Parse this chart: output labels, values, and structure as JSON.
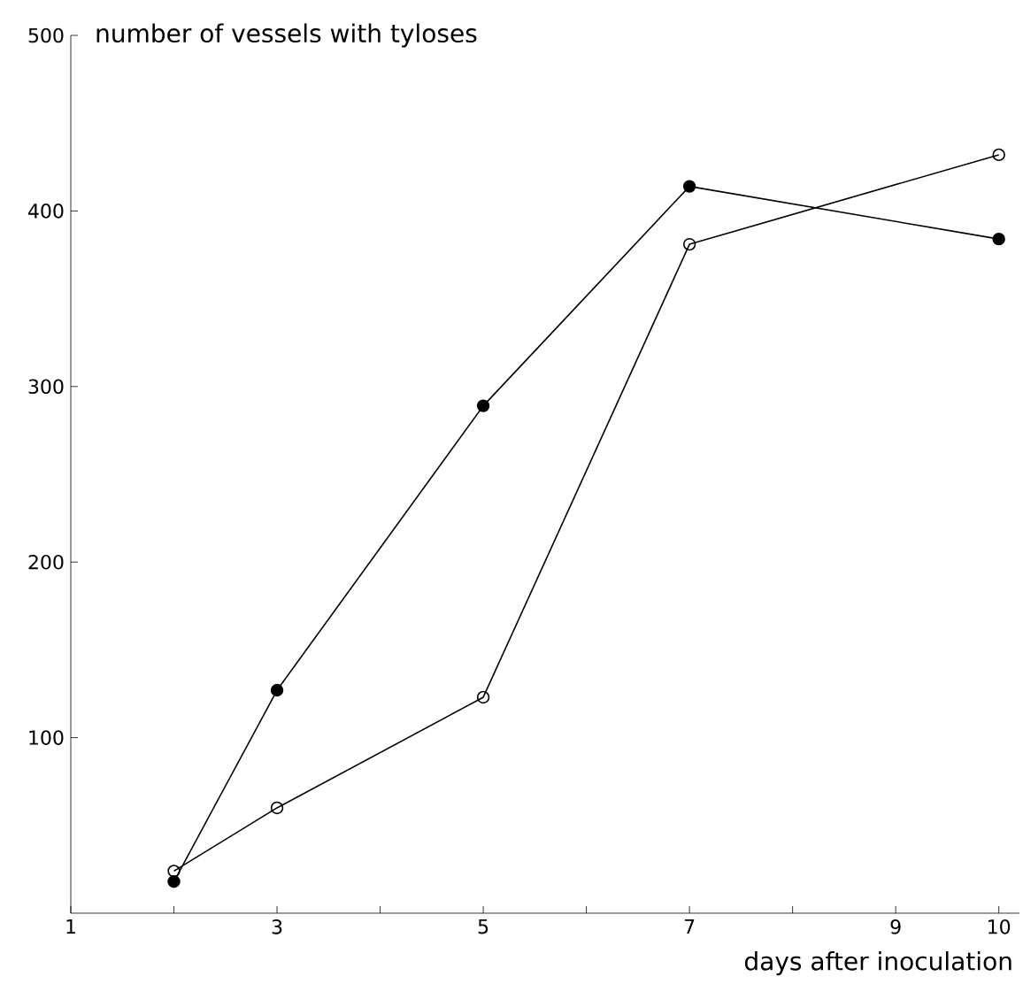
{
  "chart_data": {
    "type": "line",
    "xlabel": "days after inoculation",
    "ylabel": "number of vessels with tyloses",
    "x": [
      2,
      3,
      5,
      7,
      10
    ],
    "series": [
      {
        "color": "#000000",
        "marker": "filled circle",
        "values": [
          18,
          127,
          289,
          414,
          384
        ]
      },
      {
        "color": "#000000",
        "marker": "open circle",
        "values": [
          24,
          60,
          123,
          381,
          432
        ]
      }
    ],
    "xlim": [
      1,
      10.2
    ],
    "ylim": [
      0,
      500
    ],
    "xticks": [
      1,
      {
        "value": 2,
        "label": null
      },
      3,
      {
        "value": 4,
        "label": null
      },
      5,
      {
        "value": 6,
        "label": null
      },
      7,
      {
        "value": 8,
        "label": null
      },
      9,
      10
    ],
    "yticks": [
      100,
      200,
      300,
      400,
      500
    ],
    "line_style": "solid"
  }
}
